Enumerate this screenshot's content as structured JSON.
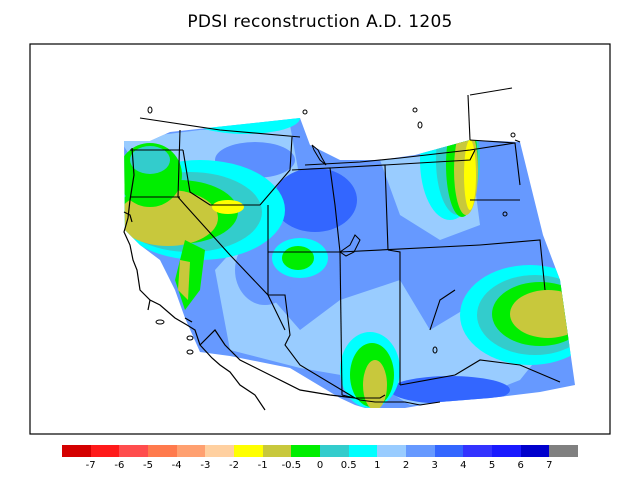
{
  "title": "PDSI reconstruction A.D. 1205",
  "legend": {
    "colors": [
      "#d40000",
      "#ff1a1a",
      "#ff4d4d",
      "#ff7a4d",
      "#ffa070",
      "#ffd0a0",
      "#ffff00",
      "#c8c83c",
      "#00ee00",
      "#33cccc",
      "#00ffff",
      "#99ccff",
      "#6699ff",
      "#3366ff",
      "#3333ff",
      "#1a1aff",
      "#0000cc",
      "#808080"
    ],
    "ticks": [
      "-7",
      "-6",
      "-5",
      "-4",
      "-3",
      "-2",
      "-1",
      "-0.5",
      "0",
      "0.5",
      "1",
      "2",
      "3",
      "4",
      "5",
      "6",
      "7"
    ]
  },
  "map": {
    "fill_colors": {
      "very_wet": "#3366ff",
      "wet": "#6699ff",
      "moist": "#99ccff",
      "near_normal": "#00ffff",
      "teal": "#33cccc",
      "neutral": "#00ee00",
      "dry": "#c8c83c",
      "drier": "#ffff00"
    }
  }
}
